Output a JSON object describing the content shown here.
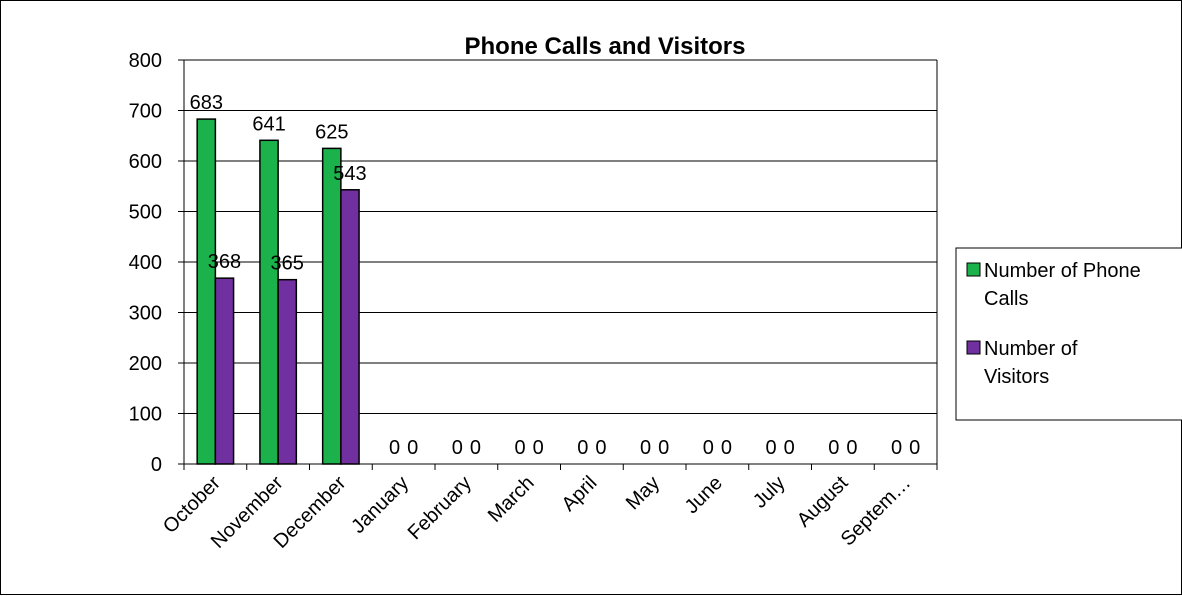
{
  "chart_data": {
    "type": "bar",
    "title": "Phone Calls and Visitors",
    "xlabel": "",
    "ylabel": "",
    "ylim": [
      0,
      800
    ],
    "yticks": [
      0,
      100,
      200,
      300,
      400,
      500,
      600,
      700,
      800
    ],
    "grid": true,
    "legend_position": "right",
    "categories": [
      "October",
      "November",
      "December",
      "January",
      "February",
      "March",
      "April",
      "May",
      "June",
      "July",
      "August",
      "Septem…"
    ],
    "series": [
      {
        "name": "Number of Phone Calls",
        "legend_lines": [
          "Number of Phone",
          "Calls"
        ],
        "color": "#1bb24b",
        "values": [
          683,
          641,
          625,
          0,
          0,
          0,
          0,
          0,
          0,
          0,
          0,
          0
        ]
      },
      {
        "name": "Number of Visitors",
        "legend_lines": [
          "Number of",
          "Visitors"
        ],
        "color": "#7030a0",
        "values": [
          368,
          365,
          543,
          0,
          0,
          0,
          0,
          0,
          0,
          0,
          0,
          0
        ]
      }
    ]
  }
}
